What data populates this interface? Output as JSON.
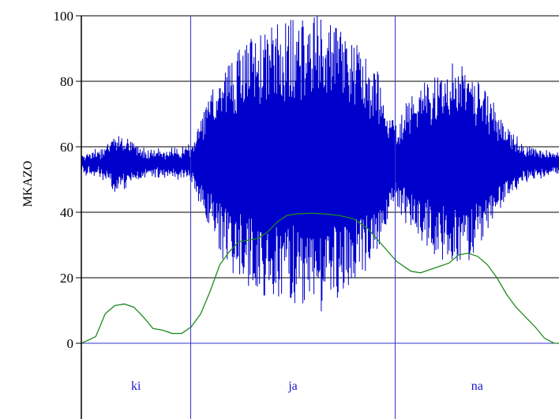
{
  "chart_data": {
    "type": "line",
    "ylabel": "MKAZO",
    "xlabel": "",
    "ylim": [
      0,
      100
    ],
    "yticks": [
      "0",
      "20",
      "40",
      "60",
      "80",
      "100"
    ],
    "grid": true,
    "colors": {
      "waveform": "#0000cc",
      "pitch": "#1e8a1e",
      "segment_lines": "#3333cc",
      "segment_text": "#1a1acc",
      "grid": "#000000",
      "axis": "#000000"
    },
    "segments": [
      {
        "label": "ki",
        "start": 0.0,
        "end": 0.229
      },
      {
        "label": "ja",
        "start": 0.229,
        "end": 0.657
      },
      {
        "label": "na",
        "start": 0.657,
        "end": 1.0
      }
    ],
    "series": [
      {
        "points": [
          [
            0.0,
            0
          ],
          [
            0.03,
            2
          ],
          [
            0.05,
            9
          ],
          [
            0.07,
            11.5
          ],
          [
            0.09,
            12
          ],
          [
            0.11,
            11
          ],
          [
            0.13,
            8
          ],
          [
            0.15,
            4.5
          ],
          [
            0.17,
            4
          ],
          [
            0.19,
            3
          ],
          [
            0.21,
            3
          ],
          [
            0.23,
            5
          ],
          [
            0.25,
            9
          ],
          [
            0.27,
            16
          ],
          [
            0.29,
            24
          ],
          [
            0.31,
            28
          ],
          [
            0.33,
            31
          ],
          [
            0.35,
            31.5
          ],
          [
            0.37,
            32
          ],
          [
            0.39,
            34
          ],
          [
            0.41,
            37
          ],
          [
            0.43,
            39
          ],
          [
            0.45,
            39.5
          ],
          [
            0.48,
            39.7
          ],
          [
            0.51,
            39.5
          ],
          [
            0.54,
            39
          ],
          [
            0.57,
            38
          ],
          [
            0.6,
            35
          ],
          [
            0.63,
            30
          ],
          [
            0.66,
            25
          ],
          [
            0.69,
            22
          ],
          [
            0.71,
            21.5
          ],
          [
            0.73,
            22.5
          ],
          [
            0.75,
            23.5
          ],
          [
            0.77,
            24.5
          ],
          [
            0.79,
            27
          ],
          [
            0.81,
            27.5
          ],
          [
            0.83,
            26.5
          ],
          [
            0.85,
            24
          ],
          [
            0.87,
            20
          ],
          [
            0.89,
            15
          ],
          [
            0.91,
            11
          ],
          [
            0.93,
            8
          ],
          [
            0.95,
            5
          ],
          [
            0.97,
            1.5
          ],
          [
            0.99,
            0
          ],
          [
            1.0,
            0
          ]
        ]
      }
    ]
  }
}
